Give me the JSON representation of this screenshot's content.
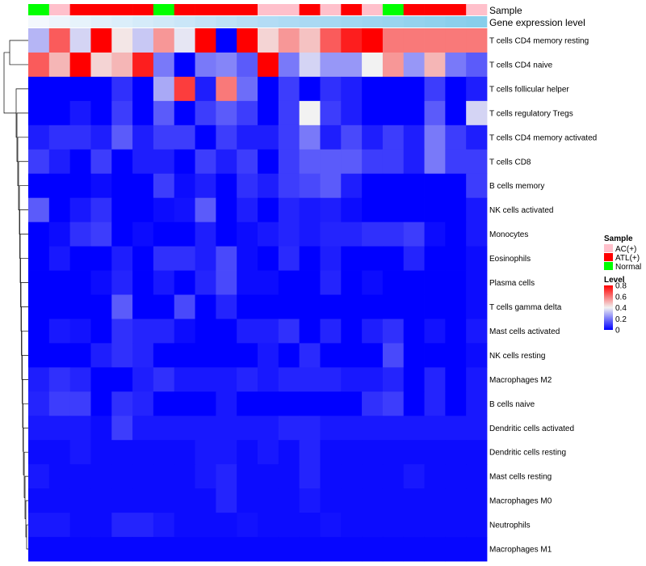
{
  "chart_data": {
    "type": "heatmap",
    "annotation_labels": [
      "Sample",
      "Gene expression level"
    ],
    "sample_group_colors": {
      "AC(+)": "#FFC0CB",
      "ATL(+)": "#FF0000",
      "Normal": "#00FF00"
    },
    "samples": [
      "Normal",
      "AC(+)",
      "ATL(+)",
      "ATL(+)",
      "ATL(+)",
      "ATL(+)",
      "Normal",
      "ATL(+)",
      "ATL(+)",
      "ATL(+)",
      "ATL(+)",
      "AC(+)",
      "AC(+)",
      "ATL(+)",
      "AC(+)",
      "ATL(+)",
      "AC(+)",
      "Normal",
      "ATL(+)",
      "ATL(+)",
      "ATL(+)",
      "AC(+)"
    ],
    "gene_expression_gradient": [
      "#F3F8FD",
      "#B5DDF5",
      "#87CEEB"
    ],
    "rows": [
      "T cells CD4 memory resting",
      "T cells CD4 naive",
      "T cells follicular helper",
      "T cells regulatory  Tregs",
      "T cells CD4 memory activated",
      "T cells CD8",
      "B cells memory",
      "NK cells activated",
      "Monocytes",
      "Eosinophils",
      "Plasma cells",
      "T cells gamma delta",
      "Mast cells activated",
      "NK cells resting",
      "Macrophages M2",
      "B cells naive",
      "Dendritic cells activated",
      "Dendritic cells resting",
      "Mast cells resting",
      "Macrophages M0",
      "Neutrophils",
      "Macrophages M1"
    ],
    "values": [
      [
        0.3,
        0.65,
        0.35,
        0.8,
        0.42,
        0.33,
        0.55,
        0.38,
        0.8,
        0.0,
        0.8,
        0.45,
        0.55,
        0.48,
        0.65,
        0.75,
        0.8,
        0.6,
        0.6,
        0.6,
        0.6,
        0.6
      ],
      [
        0.65,
        0.5,
        0.8,
        0.45,
        0.5,
        0.75,
        0.2,
        0.0,
        0.2,
        0.22,
        0.15,
        0.8,
        0.2,
        0.35,
        0.25,
        0.25,
        0.4,
        0.55,
        0.25,
        0.5,
        0.2,
        0.15
      ],
      [
        0.0,
        0.0,
        0.0,
        0.0,
        0.08,
        0.0,
        0.28,
        0.7,
        0.05,
        0.6,
        0.18,
        0.0,
        0.1,
        0.0,
        0.08,
        0.05,
        0.0,
        0.0,
        0.0,
        0.1,
        0.0,
        0.05
      ],
      [
        0.0,
        0.0,
        0.04,
        0.0,
        0.1,
        0.0,
        0.15,
        0.0,
        0.1,
        0.15,
        0.1,
        0.0,
        0.1,
        0.4,
        0.1,
        0.05,
        0.0,
        0.0,
        0.0,
        0.15,
        0.0,
        0.35
      ],
      [
        0.05,
        0.08,
        0.08,
        0.05,
        0.15,
        0.05,
        0.1,
        0.1,
        0.0,
        0.1,
        0.05,
        0.05,
        0.1,
        0.2,
        0.05,
        0.12,
        0.05,
        0.1,
        0.05,
        0.2,
        0.1,
        0.05
      ],
      [
        0.1,
        0.05,
        0.0,
        0.1,
        0.0,
        0.05,
        0.05,
        0.0,
        0.1,
        0.05,
        0.1,
        0.0,
        0.1,
        0.15,
        0.15,
        0.15,
        0.1,
        0.1,
        0.05,
        0.2,
        0.1,
        0.1
      ],
      [
        0.0,
        0.0,
        0.0,
        0.02,
        0.0,
        0.0,
        0.1,
        0.02,
        0.05,
        0.0,
        0.08,
        0.05,
        0.1,
        0.12,
        0.15,
        0.05,
        0.0,
        0.0,
        0.0,
        0.0,
        0.0,
        0.1
      ],
      [
        0.15,
        0.0,
        0.04,
        0.08,
        0.0,
        0.0,
        0.02,
        0.03,
        0.15,
        0.0,
        0.05,
        0.0,
        0.06,
        0.04,
        0.05,
        0.02,
        0.0,
        0.0,
        0.0,
        0.0,
        0.0,
        0.04
      ],
      [
        0.0,
        0.02,
        0.08,
        0.1,
        0.0,
        0.02,
        0.0,
        0.0,
        0.05,
        0.0,
        0.02,
        0.04,
        0.06,
        0.04,
        0.06,
        0.06,
        0.08,
        0.08,
        0.1,
        0.02,
        0.0,
        0.04
      ],
      [
        0.0,
        0.04,
        0.0,
        0.0,
        0.05,
        0.0,
        0.08,
        0.08,
        0.05,
        0.12,
        0.02,
        0.0,
        0.07,
        0.0,
        0.05,
        0.0,
        0.0,
        0.0,
        0.06,
        0.0,
        0.0,
        0.02
      ],
      [
        0.0,
        0.0,
        0.0,
        0.02,
        0.06,
        0.0,
        0.04,
        0.0,
        0.06,
        0.12,
        0.02,
        0.02,
        0.0,
        0.0,
        0.06,
        0.0,
        0.02,
        0.0,
        0.0,
        0.0,
        0.0,
        0.02
      ],
      [
        0.0,
        0.0,
        0.0,
        0.0,
        0.15,
        0.0,
        0.0,
        0.12,
        0.0,
        0.06,
        0.0,
        0.0,
        0.0,
        0.0,
        0.0,
        0.0,
        0.0,
        0.0,
        0.0,
        0.0,
        0.0,
        0.02
      ],
      [
        0.0,
        0.04,
        0.03,
        0.0,
        0.08,
        0.06,
        0.06,
        0.02,
        0.0,
        0.0,
        0.05,
        0.05,
        0.08,
        0.0,
        0.06,
        0.0,
        0.05,
        0.08,
        0.0,
        0.03,
        0.0,
        0.04
      ],
      [
        0.0,
        0.0,
        0.0,
        0.05,
        0.08,
        0.06,
        0.0,
        0.0,
        0.0,
        0.0,
        0.0,
        0.04,
        0.0,
        0.07,
        0.0,
        0.0,
        0.0,
        0.12,
        0.0,
        0.0,
        0.0,
        0.02
      ],
      [
        0.05,
        0.08,
        0.06,
        0.0,
        0.0,
        0.05,
        0.08,
        0.04,
        0.04,
        0.04,
        0.06,
        0.04,
        0.06,
        0.06,
        0.06,
        0.04,
        0.04,
        0.06,
        0.0,
        0.06,
        0.0,
        0.04
      ],
      [
        0.06,
        0.1,
        0.1,
        0.0,
        0.08,
        0.06,
        0.0,
        0.0,
        0.0,
        0.04,
        0.0,
        0.0,
        0.0,
        0.0,
        0.0,
        0.0,
        0.08,
        0.1,
        0.0,
        0.06,
        0.0,
        0.04
      ],
      [
        0.04,
        0.04,
        0.04,
        0.02,
        0.1,
        0.04,
        0.04,
        0.04,
        0.04,
        0.04,
        0.04,
        0.04,
        0.06,
        0.06,
        0.04,
        0.04,
        0.04,
        0.04,
        0.04,
        0.04,
        0.04,
        0.04
      ],
      [
        0.02,
        0.02,
        0.04,
        0.02,
        0.02,
        0.02,
        0.02,
        0.02,
        0.04,
        0.04,
        0.02,
        0.04,
        0.02,
        0.06,
        0.02,
        0.02,
        0.02,
        0.02,
        0.02,
        0.02,
        0.02,
        0.02
      ],
      [
        0.04,
        0.02,
        0.02,
        0.02,
        0.02,
        0.02,
        0.02,
        0.02,
        0.04,
        0.06,
        0.02,
        0.02,
        0.02,
        0.06,
        0.02,
        0.02,
        0.02,
        0.02,
        0.04,
        0.02,
        0.02,
        0.02
      ],
      [
        0.02,
        0.02,
        0.02,
        0.02,
        0.02,
        0.02,
        0.02,
        0.02,
        0.02,
        0.06,
        0.02,
        0.02,
        0.02,
        0.04,
        0.02,
        0.02,
        0.02,
        0.02,
        0.02,
        0.02,
        0.02,
        0.02
      ],
      [
        0.04,
        0.04,
        0.02,
        0.02,
        0.06,
        0.06,
        0.04,
        0.02,
        0.02,
        0.02,
        0.03,
        0.02,
        0.02,
        0.02,
        0.03,
        0.02,
        0.02,
        0.02,
        0.02,
        0.02,
        0.02,
        0.02
      ],
      [
        0.01,
        0.01,
        0.01,
        0.01,
        0.01,
        0.01,
        0.01,
        0.01,
        0.01,
        0.01,
        0.01,
        0.01,
        0.01,
        0.01,
        0.01,
        0.01,
        0.01,
        0.01,
        0.01,
        0.01,
        0.01,
        0.01
      ]
    ],
    "color_scale": {
      "min": 0,
      "max": 0.8,
      "colors": [
        "#0000FF",
        "#F2F2F2",
        "#FF0000"
      ]
    },
    "legend": {
      "sample_title": "Sample",
      "sample_entries": [
        "AC(+)",
        "ATL(+)",
        "Normal"
      ],
      "level_title": "Level",
      "level_ticks": [
        "0.8",
        "0.6",
        "0.4",
        "0.2",
        "0"
      ],
      "position": "right"
    }
  }
}
